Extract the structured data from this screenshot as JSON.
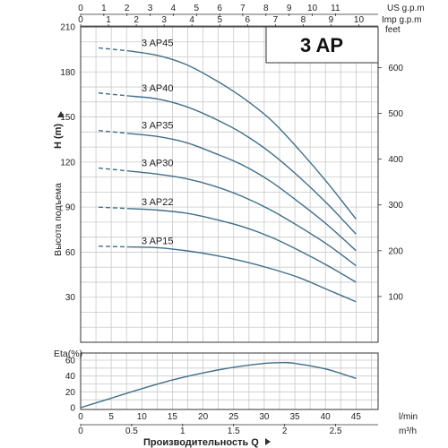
{
  "chart_data": [
    {
      "type": "line",
      "title": "3 AP",
      "ylabel_left": "Высота подъема",
      "ylabel_left_unit": "H (m)",
      "ylabel_right_unit": "feet",
      "ylim": [
        0,
        210
      ],
      "y_ticks": [
        30,
        60,
        90,
        120,
        150,
        180,
        210
      ],
      "y_right_ticks": [
        100,
        200,
        300,
        400,
        500,
        600
      ],
      "top_axis_1": {
        "label": "US g.p.m",
        "ticks": [
          0,
          1,
          2,
          3,
          4,
          5,
          6,
          7,
          8,
          9,
          10,
          11
        ]
      },
      "top_axis_2": {
        "label": "Imp g.p.m",
        "ticks": [
          0,
          1,
          2,
          3,
          4,
          5,
          6,
          7,
          8,
          9,
          10
        ]
      },
      "x_unit": "l/min",
      "xlim": [
        0,
        48.5
      ],
      "series": [
        {
          "name": "3 AP45",
          "x": [
            0,
            5,
            10,
            15,
            20,
            25,
            30,
            35,
            40,
            45
          ],
          "y": [
            196,
            194,
            191,
            185,
            175,
            163,
            148,
            128,
            106,
            82
          ]
        },
        {
          "name": "3 AP40",
          "x": [
            0,
            5,
            10,
            15,
            20,
            25,
            30,
            35,
            40,
            45
          ],
          "y": [
            166,
            164,
            162,
            157,
            149,
            139,
            126,
            110,
            92,
            72
          ]
        },
        {
          "name": "3 AP35",
          "x": [
            0,
            5,
            10,
            15,
            20,
            25,
            30,
            35,
            40,
            45
          ],
          "y": [
            141,
            139,
            137,
            133,
            126,
            118,
            107,
            93,
            78,
            61
          ]
        },
        {
          "name": "3 AP30",
          "x": [
            0,
            5,
            10,
            15,
            20,
            25,
            30,
            35,
            40,
            45
          ],
          "y": [
            116,
            114,
            112,
            109,
            104,
            97,
            88,
            77,
            65,
            51
          ]
        },
        {
          "name": "3 AP22",
          "x": [
            0,
            5,
            10,
            15,
            20,
            25,
            30,
            35,
            40,
            45
          ],
          "y": [
            90,
            89,
            88,
            86,
            82,
            77,
            70,
            61,
            51,
            40
          ]
        },
        {
          "name": "3 AP15",
          "x": [
            0,
            5,
            10,
            15,
            20,
            25,
            30,
            35,
            40,
            45
          ],
          "y": [
            64,
            63.5,
            63,
            61,
            58,
            54,
            49,
            43,
            35,
            27
          ]
        }
      ]
    },
    {
      "type": "line",
      "ylabel": "Eta(%)",
      "ylim": [
        0,
        60
      ],
      "y_ticks": [
        0,
        20,
        40,
        60
      ],
      "x_unit": "l/min",
      "x_ticks": [
        0,
        5,
        10,
        15,
        20,
        25,
        30,
        35,
        40,
        45
      ],
      "x2_unit": "m³/h",
      "x2_ticks": [
        0,
        0.5,
        1,
        1.5,
        2,
        2.5
      ],
      "xlabel": "Производительность Q",
      "xlim": [
        0,
        48.5
      ],
      "series": [
        {
          "x": [
            0,
            5,
            10,
            15,
            20,
            25,
            30,
            33,
            35,
            40,
            45
          ],
          "y": [
            0,
            12,
            24,
            35,
            44,
            51,
            56,
            57,
            56,
            49,
            37
          ]
        }
      ]
    }
  ]
}
